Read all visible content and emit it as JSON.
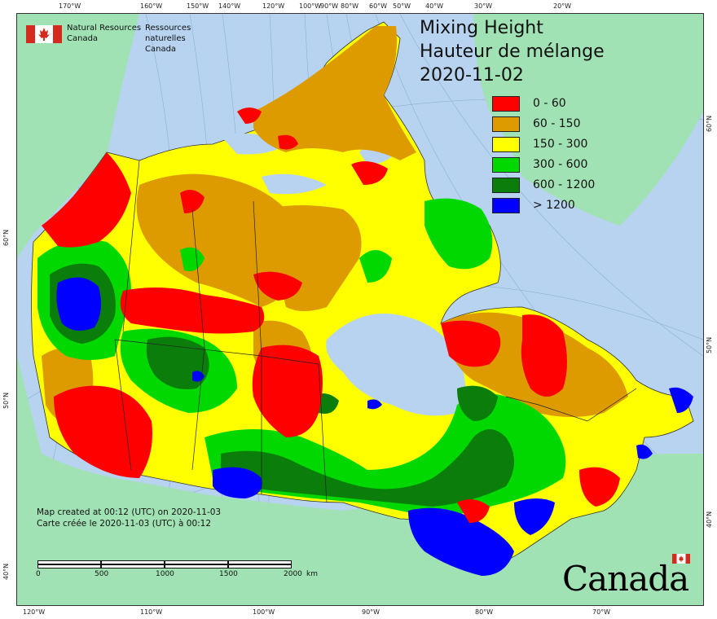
{
  "logo": {
    "org_en_line1": "Natural Resources",
    "org_en_line2": "Canada",
    "org_fr_line1": "Ressources naturelles",
    "org_fr_line2": "Canada"
  },
  "title": {
    "en": "Mixing Height",
    "fr": "Hauteur de mélange",
    "date": "2020-11-02"
  },
  "legend": {
    "items": [
      {
        "label": "0 - 60",
        "color": "#ff0000"
      },
      {
        "label": "60 - 150",
        "color": "#dd9b00"
      },
      {
        "label": "150 - 300",
        "color": "#ffff00"
      },
      {
        "label": "300 - 600",
        "color": "#00d800"
      },
      {
        "label": "600 - 1200",
        "color": "#0a7d0a"
      },
      {
        "label": "> 1200",
        "color": "#0000ff"
      }
    ]
  },
  "credit": {
    "en": "Map created at 00:12 (UTC) on 2020-11-03",
    "fr": "Carte créée le 2020-11-03 (UTC) à 00:12"
  },
  "scale": {
    "labels": [
      "0",
      "500",
      "1000",
      "1500",
      "2000"
    ],
    "unit": "km"
  },
  "wordmark": "Canada",
  "graticule": {
    "top": [
      "170°W",
      "160°W",
      "150°W",
      "140°W",
      "120°W",
      "100°W",
      "90°W",
      "80°W",
      "60°W",
      "50°W",
      "40°W",
      "30°W",
      "20°W"
    ],
    "bottom": [
      "120°W",
      "110°W",
      "100°W",
      "90°W",
      "80°W",
      "70°W"
    ],
    "left": [
      "60°N",
      "50°N",
      "40°N"
    ],
    "right": [
      "60°N",
      "50°N",
      "40°N"
    ]
  },
  "colors": {
    "ocean": "#b7d3ef",
    "land_outside": "#a0e2b4",
    "border": "#222222"
  }
}
